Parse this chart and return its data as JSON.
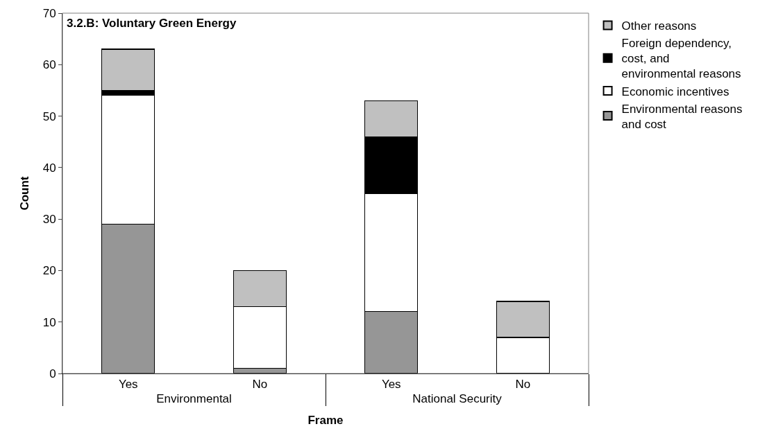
{
  "chart_data": {
    "type": "bar",
    "title": "3.2.B: Voluntary Green Energy",
    "xlabel": "Frame",
    "ylabel": "Count",
    "categories": [
      "Yes",
      "No",
      "Yes",
      "No"
    ],
    "annotations": [
      "Environmental",
      "National Security"
    ],
    "stacked": true,
    "series": [
      {
        "name": "Environmental reasons and cost",
        "color": "#969696",
        "values": [
          29,
          1,
          12,
          0
        ]
      },
      {
        "name": "Economic incentives",
        "color": "#ffffff",
        "values": [
          25,
          12,
          23,
          7
        ]
      },
      {
        "name": "Foreign dependency, cost, and environmental reasons",
        "color": "#000000",
        "values": [
          1,
          0,
          11,
          0
        ]
      },
      {
        "name": "Other reasons",
        "color": "#c0c0c0",
        "values": [
          8,
          7,
          7,
          7
        ]
      }
    ],
    "ylim": [
      0,
      70
    ],
    "yticks": [
      0,
      10,
      20,
      30,
      40,
      50,
      60,
      70
    ],
    "legend": "right"
  }
}
